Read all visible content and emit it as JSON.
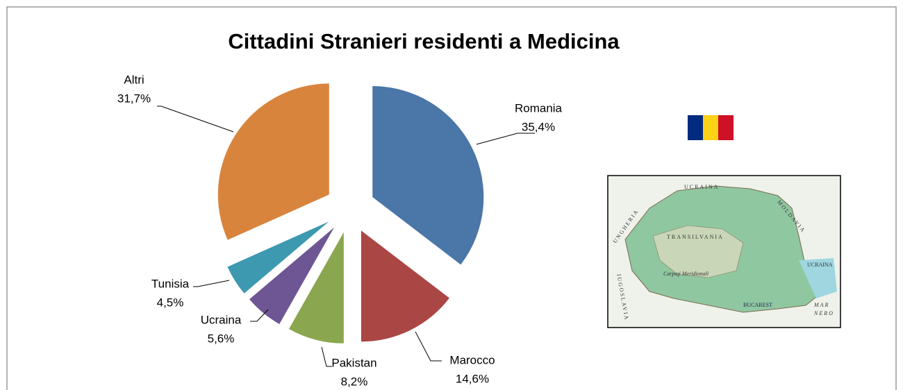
{
  "chart_data": {
    "type": "pie",
    "title": "Cittadini Stranieri residenti a Medicina",
    "categories": [
      "Romania",
      "Marocco",
      "Pakistan",
      "Ucraina",
      "Tunisia",
      "Altri"
    ],
    "values": [
      35.4,
      14.6,
      8.2,
      5.6,
      4.5,
      31.7
    ],
    "value_labels": [
      "35,4%",
      "14,6%",
      "8,2%",
      "5,6%",
      "4,5%",
      "31,7%"
    ],
    "colors": [
      "#4a76a8",
      "#aa4644",
      "#8aa64f",
      "#6e5694",
      "#3d99b0",
      "#d9843d"
    ],
    "exploded": true
  },
  "map_labels": [
    "UCRAINA",
    "MOLDAVIA",
    "UNGHERIA",
    "TRANSILVANIA",
    "IUGOSLAVIA",
    "Carpaţi Meridionali",
    "BUCAREST",
    "UCRAINA",
    "MAR",
    "NERO"
  ]
}
